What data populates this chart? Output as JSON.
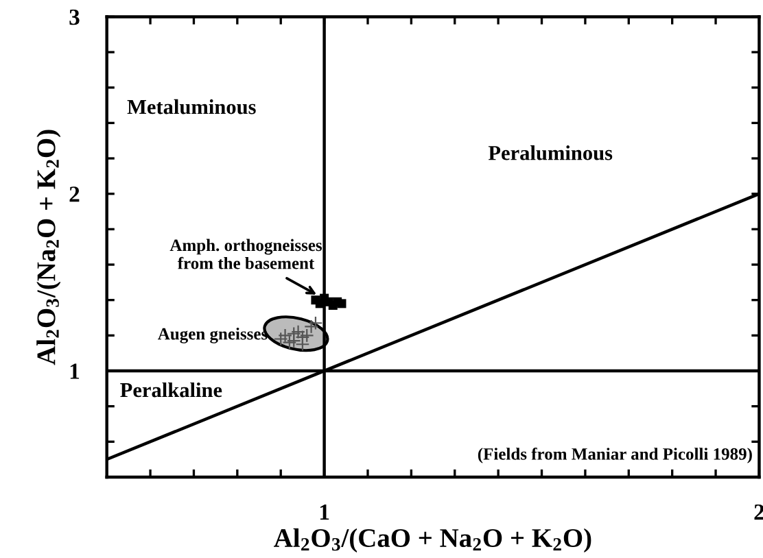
{
  "chart_data": {
    "type": "scatter",
    "xlabel": "Al$_{2}$O$_{3}$/(CaO + Na$_{2}$O + K$_{2}$O)",
    "ylabel": "Al$_{2}$O$_{3}$/(Na$_{2}$O + K$_{2}$O)",
    "xlim": [
      0.5,
      2
    ],
    "ylim": [
      0.4,
      3
    ],
    "xticks": [
      {
        "value": 0.6,
        "label": null
      },
      {
        "value": 0.7,
        "label": null
      },
      {
        "value": 0.8,
        "label": null
      },
      {
        "value": 0.9,
        "label": null
      },
      1,
      {
        "value": 1.1,
        "label": null
      },
      {
        "value": 1.2,
        "label": null
      },
      {
        "value": 1.3,
        "label": null
      },
      {
        "value": 1.4,
        "label": null
      },
      {
        "value": 1.5,
        "label": null
      },
      {
        "value": 1.6,
        "label": null
      },
      {
        "value": 1.7,
        "label": null
      },
      {
        "value": 1.8,
        "label": null
      },
      {
        "value": 1.9,
        "label": null
      },
      2
    ],
    "yticks": [
      {
        "value": 0.6,
        "label": null
      },
      {
        "value": 0.8,
        "label": null
      },
      1,
      {
        "value": 1.2,
        "label": null
      },
      {
        "value": 1.4,
        "label": null
      },
      {
        "value": 1.6,
        "label": null
      },
      {
        "value": 1.8,
        "label": null
      },
      2,
      {
        "value": 2.2,
        "label": null
      },
      {
        "value": 2.4,
        "label": null
      },
      {
        "value": 2.6,
        "label": null
      },
      {
        "value": 2.8,
        "label": null
      },
      3
    ],
    "grid": false,
    "series": [
      {
        "color": "#555555",
        "marker": "cross",
        "x": [
          0.9,
          0.91,
          0.92,
          0.93,
          0.93,
          0.94,
          0.95,
          0.95,
          0.96,
          0.97,
          0.98
        ],
        "values": [
          1.18,
          1.2,
          1.16,
          1.21,
          1.17,
          1.22,
          1.19,
          1.15,
          1.2,
          1.25,
          1.27
        ]
      },
      {
        "color": "#000000",
        "marker": "square",
        "x": [
          0.98,
          0.99,
          1.0,
          1.01,
          1.02,
          1.03,
          1.04
        ],
        "values": [
          1.4,
          1.38,
          1.41,
          1.39,
          1.37,
          1.39,
          1.38
        ]
      },
      {
        "type": "line",
        "color": "#000000",
        "line_style": "solid",
        "marker": "none",
        "x": [
          0.5,
          2
        ],
        "values": [
          0.5,
          2
        ]
      },
      {
        "type": "line",
        "color": "#000000",
        "line_style": "solid",
        "marker": "none",
        "x": [
          0.5,
          2
        ],
        "values": [
          1,
          1
        ]
      }
    ],
    "ref_lines": [
      {
        "axis": "x",
        "value": 1,
        "color": "#000000"
      }
    ],
    "annotations": [
      "Metaluminous",
      "Peraluminous",
      "Peralkaline",
      {
        "text": "Amph. orthogneisses\nfrom the basement",
        "x": 0.99,
        "y": 1.42
      },
      {
        "text": "Augen gneisses",
        "x": 0.87,
        "y": 1.2
      },
      "(Fields from Maniar and Picolli 1989)"
    ]
  }
}
